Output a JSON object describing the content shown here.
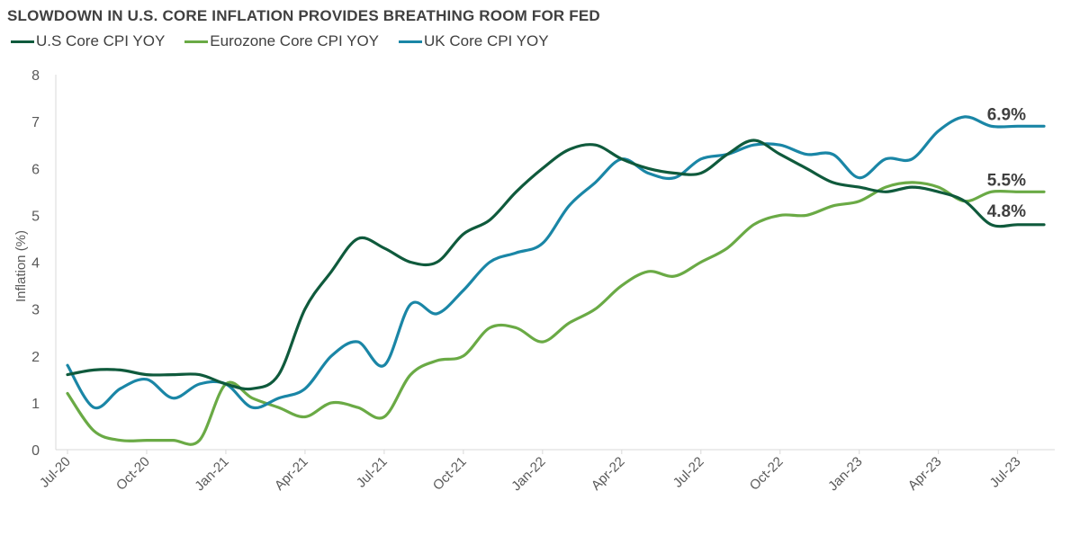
{
  "chart_data": {
    "type": "line",
    "title": "SLOWDOWN IN U.S. CORE INFLATION PROVIDES BREATHING ROOM FOR FED",
    "ylabel": "Inflation (%)",
    "xlabel": "",
    "ylim": [
      0,
      8
    ],
    "yticks": [
      "0",
      "1",
      "2",
      "3",
      "4",
      "5",
      "6",
      "7",
      "8"
    ],
    "x": [
      "Jul-20",
      "Aug-20",
      "Sep-20",
      "Oct-20",
      "Nov-20",
      "Dec-20",
      "Jan-21",
      "Feb-21",
      "Mar-21",
      "Apr-21",
      "May-21",
      "Jun-21",
      "Jul-21",
      "Aug-21",
      "Sep-21",
      "Oct-21",
      "Nov-21",
      "Dec-21",
      "Jan-22",
      "Feb-22",
      "Mar-22",
      "Apr-22",
      "May-22",
      "Jun-22",
      "Jul-22",
      "Aug-22",
      "Sep-22",
      "Oct-22",
      "Nov-22",
      "Dec-22",
      "Jan-23",
      "Feb-23",
      "Mar-23",
      "Apr-23",
      "May-23",
      "Jun-23",
      "Jul-23",
      "Aug-23"
    ],
    "xtick_labels": [
      "Jul-20",
      "Oct-20",
      "Jan-21",
      "Apr-21",
      "Jul-21",
      "Oct-21",
      "Jan-22",
      "Apr-22",
      "Jul-22",
      "Oct-22",
      "Jan-23",
      "Apr-23",
      "Jul-23"
    ],
    "grid": false,
    "legend_position": "top-left",
    "series": [
      {
        "name": "U.S Core CPI YOY",
        "color": "#0f5a3c",
        "values": [
          1.6,
          1.7,
          1.7,
          1.6,
          1.6,
          1.6,
          1.4,
          1.3,
          1.6,
          3.0,
          3.8,
          4.5,
          4.3,
          4.0,
          4.0,
          4.6,
          4.9,
          5.5,
          6.0,
          6.4,
          6.5,
          6.2,
          6.0,
          5.9,
          5.9,
          6.3,
          6.6,
          6.3,
          6.0,
          5.7,
          5.6,
          5.5,
          5.6,
          5.5,
          5.3,
          4.8,
          4.8,
          4.8
        ],
        "end_label": "4.8%"
      },
      {
        "name": "Eurozone Core CPI YOY",
        "color": "#6aaa45",
        "values": [
          1.2,
          0.4,
          0.2,
          0.2,
          0.2,
          0.2,
          1.4,
          1.1,
          0.9,
          0.7,
          1.0,
          0.9,
          0.7,
          1.6,
          1.9,
          2.0,
          2.6,
          2.6,
          2.3,
          2.7,
          3.0,
          3.5,
          3.8,
          3.7,
          4.0,
          4.3,
          4.8,
          5.0,
          5.0,
          5.2,
          5.3,
          5.6,
          5.7,
          5.6,
          5.3,
          5.5,
          5.5,
          5.5
        ],
        "end_label": "5.5%"
      },
      {
        "name": "UK Core CPI YOY",
        "color": "#1a86a6",
        "values": [
          1.8,
          0.9,
          1.3,
          1.5,
          1.1,
          1.4,
          1.4,
          0.9,
          1.1,
          1.3,
          2.0,
          2.3,
          1.8,
          3.1,
          2.9,
          3.4,
          4.0,
          4.2,
          4.4,
          5.2,
          5.7,
          6.2,
          5.9,
          5.8,
          6.2,
          6.3,
          6.5,
          6.5,
          6.3,
          6.3,
          5.8,
          6.2,
          6.2,
          6.8,
          7.1,
          6.9,
          6.9,
          6.9
        ],
        "end_label": "6.9%"
      }
    ]
  }
}
